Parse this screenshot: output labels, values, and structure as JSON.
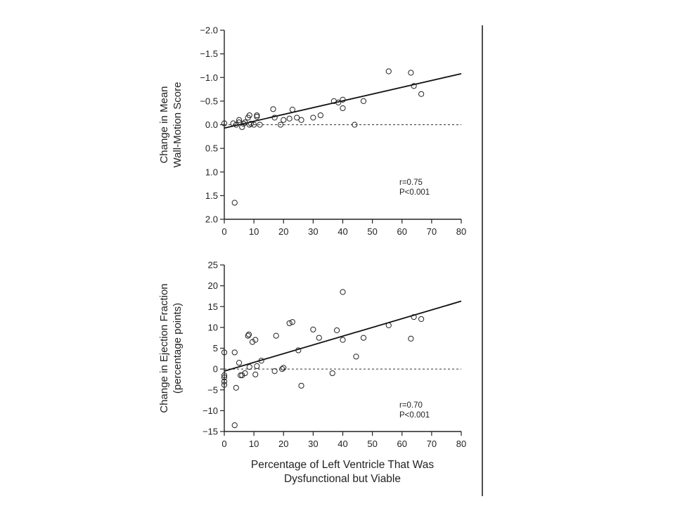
{
  "figure": {
    "x_caption_line1": "Percentage of Left Ventricle That Was",
    "x_caption_line2": "Dysfunctional but Viable"
  },
  "chart_data": [
    {
      "type": "scatter",
      "id": "wall_motion",
      "ylabel_line1": "Change in Mean",
      "ylabel_line2": "Wall-Motion Score",
      "xlabel": "Percentage of Left Ventricle That Was Dysfunctional but Viable",
      "xlim": [
        0,
        80
      ],
      "ylim": [
        2.0,
        -2.0
      ],
      "y_inverted": true,
      "x_ticks": [
        "0",
        "10",
        "20",
        "30",
        "40",
        "50",
        "60",
        "70",
        "80"
      ],
      "y_ticks": [
        "−2.0",
        "−1.5",
        "−1.0",
        "−0.5",
        "0.0",
        "0.5",
        "1.0",
        "1.5",
        "2.0"
      ],
      "y_tick_values": [
        -2.0,
        -1.5,
        -1.0,
        -0.5,
        0.0,
        0.5,
        1.0,
        1.5,
        2.0
      ],
      "x_tick_values": [
        0,
        10,
        20,
        30,
        40,
        50,
        60,
        70,
        80
      ],
      "reference_line": 0.0,
      "regression": {
        "x": [
          0,
          80
        ],
        "y": [
          0.07,
          -1.08
        ]
      },
      "stats": [
        "r=0.75",
        "P<0.001"
      ],
      "points": [
        {
          "x": 0,
          "y": -0.03
        },
        {
          "x": 3,
          "y": -0.03
        },
        {
          "x": 3.5,
          "y": 1.65
        },
        {
          "x": 4,
          "y": 0.0
        },
        {
          "x": 5,
          "y": -0.05
        },
        {
          "x": 5,
          "y": -0.1
        },
        {
          "x": 6,
          "y": 0.05
        },
        {
          "x": 6.5,
          "y": -0.02
        },
        {
          "x": 7,
          "y": -0.05
        },
        {
          "x": 8,
          "y": -0.15
        },
        {
          "x": 8.5,
          "y": -0.2
        },
        {
          "x": 8.5,
          "y": 0.0
        },
        {
          "x": 9,
          "y": -0.02
        },
        {
          "x": 10,
          "y": 0.0
        },
        {
          "x": 11,
          "y": -0.2
        },
        {
          "x": 11,
          "y": -0.17
        },
        {
          "x": 12,
          "y": 0.0
        },
        {
          "x": 16.5,
          "y": -0.33
        },
        {
          "x": 17,
          "y": -0.15
        },
        {
          "x": 19,
          "y": 0.0
        },
        {
          "x": 20,
          "y": -0.1
        },
        {
          "x": 22,
          "y": -0.13
        },
        {
          "x": 23,
          "y": -0.32
        },
        {
          "x": 24.5,
          "y": -0.15
        },
        {
          "x": 26,
          "y": -0.1
        },
        {
          "x": 30,
          "y": -0.15
        },
        {
          "x": 32.5,
          "y": -0.2
        },
        {
          "x": 37,
          "y": -0.5
        },
        {
          "x": 38.5,
          "y": -0.47
        },
        {
          "x": 40,
          "y": -0.53
        },
        {
          "x": 40,
          "y": -0.35
        },
        {
          "x": 44,
          "y": 0.0
        },
        {
          "x": 47,
          "y": -0.5
        },
        {
          "x": 55.5,
          "y": -1.13
        },
        {
          "x": 63,
          "y": -1.1
        },
        {
          "x": 64,
          "y": -0.82
        },
        {
          "x": 66.5,
          "y": -0.65
        }
      ]
    },
    {
      "type": "scatter",
      "id": "ejection_fraction",
      "ylabel_line1": "Change in Ejection Fraction",
      "ylabel_line2": "(percentage points)",
      "xlabel": "Percentage of Left Ventricle That Was Dysfunctional but Viable",
      "xlim": [
        0,
        80
      ],
      "ylim": [
        -15,
        25
      ],
      "y_inverted": false,
      "x_ticks": [
        "0",
        "10",
        "20",
        "30",
        "40",
        "50",
        "60",
        "70",
        "80"
      ],
      "y_ticks": [
        "25",
        "20",
        "15",
        "10",
        "5",
        "0",
        "−5",
        "−10",
        "−15"
      ],
      "y_tick_values": [
        25,
        20,
        15,
        10,
        5,
        0,
        -5,
        -10,
        -15
      ],
      "x_tick_values": [
        0,
        10,
        20,
        30,
        40,
        50,
        60,
        70,
        80
      ],
      "reference_line": 0,
      "regression": {
        "x": [
          0,
          80
        ],
        "y": [
          -0.5,
          16.3
        ]
      },
      "stats": [
        "r=0.70",
        "P<0.001"
      ],
      "points": [
        {
          "x": 0,
          "y": 4.0
        },
        {
          "x": 0,
          "y": -1.5
        },
        {
          "x": 0,
          "y": -2.0
        },
        {
          "x": 0,
          "y": -3.0
        },
        {
          "x": 0,
          "y": -3.8
        },
        {
          "x": 3.5,
          "y": 4.0
        },
        {
          "x": 3.5,
          "y": -13.5
        },
        {
          "x": 4,
          "y": -4.5
        },
        {
          "x": 5,
          "y": 1.5
        },
        {
          "x": 5.5,
          "y": -1.5
        },
        {
          "x": 6,
          "y": -1.5
        },
        {
          "x": 7,
          "y": -1.0
        },
        {
          "x": 8,
          "y": 8.0
        },
        {
          "x": 8.3,
          "y": 8.3
        },
        {
          "x": 8.5,
          "y": 0.5
        },
        {
          "x": 9.5,
          "y": 6.5
        },
        {
          "x": 10.5,
          "y": 7.0
        },
        {
          "x": 10.5,
          "y": -1.3
        },
        {
          "x": 11,
          "y": 0.7
        },
        {
          "x": 12.5,
          "y": 2.0
        },
        {
          "x": 17,
          "y": -0.5
        },
        {
          "x": 17.5,
          "y": 8.0
        },
        {
          "x": 19.5,
          "y": 0.0
        },
        {
          "x": 20,
          "y": 0.3
        },
        {
          "x": 22,
          "y": 11.0
        },
        {
          "x": 23,
          "y": 11.3
        },
        {
          "x": 25,
          "y": 4.5
        },
        {
          "x": 26,
          "y": -4.0
        },
        {
          "x": 30,
          "y": 9.5
        },
        {
          "x": 32,
          "y": 7.5
        },
        {
          "x": 36.5,
          "y": -1.0
        },
        {
          "x": 38,
          "y": 9.3
        },
        {
          "x": 40,
          "y": 18.5
        },
        {
          "x": 40,
          "y": 7.0
        },
        {
          "x": 44.5,
          "y": 3.0
        },
        {
          "x": 47,
          "y": 7.5
        },
        {
          "x": 55.5,
          "y": 10.5
        },
        {
          "x": 63,
          "y": 7.3
        },
        {
          "x": 64,
          "y": 12.5
        },
        {
          "x": 66.5,
          "y": 12.0
        }
      ]
    }
  ]
}
